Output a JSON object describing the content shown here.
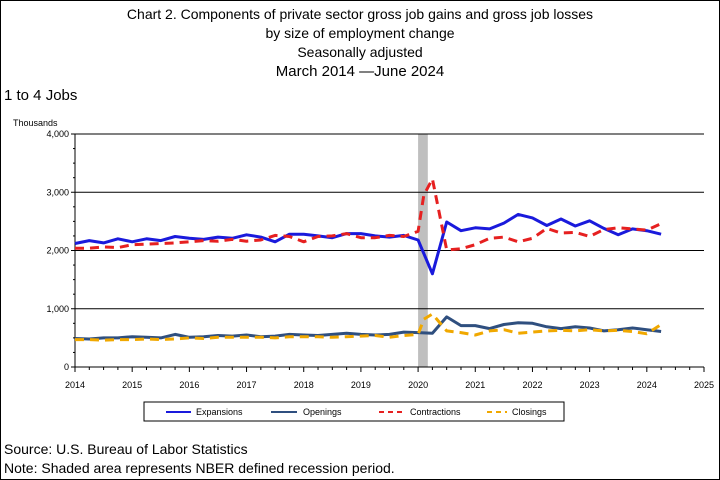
{
  "header": {
    "title_line1": "Chart 2. Components of private sector gross job gains and gross job losses",
    "title_line2": "by size of employment change",
    "title_line3": "Seasonally adjusted",
    "title_line4": "March 2014 —June 2024"
  },
  "subtitle": "1 to 4 Jobs",
  "footer": {
    "source": "Source: U.S. Bureau of Labor Statistics",
    "note": "Note: Shaded area represents NBER defined recession period."
  },
  "chart_data": {
    "type": "line",
    "ylabel": "Thousands",
    "xlabel": "",
    "xlim": [
      2014,
      2025
    ],
    "ylim": [
      0,
      4000
    ],
    "yticks": [
      0,
      1000,
      2000,
      3000,
      4000
    ],
    "ytick_labels": [
      "0",
      "1,000",
      "2,000",
      "3,000",
      "4,000"
    ],
    "xticks": [
      2014,
      2015,
      2016,
      2017,
      2018,
      2019,
      2020,
      2021,
      2022,
      2023,
      2024,
      2025
    ],
    "xtick_labels": [
      "2014",
      "2015",
      "2016",
      "2017",
      "2018",
      "2019",
      "2020",
      "2021",
      "2022",
      "2023",
      "2024",
      "2025"
    ],
    "grid": "horizontal",
    "recession": {
      "start": 2020.0,
      "end": 2020.17
    },
    "legend_position": "bottom",
    "colors": {
      "expansions": "#1a1adc",
      "openings": "#2f4f7f",
      "contractions": "#e62020",
      "closings": "#f0a800",
      "recession": "#bfbfbf"
    },
    "series": [
      {
        "name": "Expansions",
        "key": "expansions",
        "style": "solid",
        "x": [
          2014.0,
          2014.25,
          2014.5,
          2014.75,
          2015.0,
          2015.25,
          2015.5,
          2015.75,
          2016.0,
          2016.25,
          2016.5,
          2016.75,
          2017.0,
          2017.25,
          2017.5,
          2017.75,
          2018.0,
          2018.25,
          2018.5,
          2018.75,
          2019.0,
          2019.25,
          2019.5,
          2019.75,
          2020.0,
          2020.25,
          2020.5,
          2020.75,
          2021.0,
          2021.25,
          2021.5,
          2021.75,
          2022.0,
          2022.25,
          2022.5,
          2022.75,
          2023.0,
          2023.25,
          2023.5,
          2023.75,
          2024.0,
          2024.25
        ],
        "y": [
          2120,
          2170,
          2130,
          2200,
          2150,
          2200,
          2170,
          2240,
          2210,
          2190,
          2230,
          2210,
          2270,
          2230,
          2150,
          2280,
          2280,
          2250,
          2220,
          2290,
          2290,
          2250,
          2230,
          2260,
          2180,
          1600,
          2490,
          2340,
          2390,
          2370,
          2470,
          2620,
          2560,
          2430,
          2540,
          2420,
          2510,
          2380,
          2270,
          2370,
          2340,
          2280
        ]
      },
      {
        "name": "Openings",
        "key": "openings",
        "style": "solid",
        "x": [
          2014.0,
          2014.25,
          2014.5,
          2014.75,
          2015.0,
          2015.25,
          2015.5,
          2015.75,
          2016.0,
          2016.25,
          2016.5,
          2016.75,
          2017.0,
          2017.25,
          2017.5,
          2017.75,
          2018.0,
          2018.25,
          2018.5,
          2018.75,
          2019.0,
          2019.25,
          2019.5,
          2019.75,
          2020.0,
          2020.25,
          2020.5,
          2020.75,
          2021.0,
          2021.25,
          2021.5,
          2021.75,
          2022.0,
          2022.25,
          2022.5,
          2022.75,
          2023.0,
          2023.25,
          2023.5,
          2023.75,
          2024.0,
          2024.25
        ],
        "y": [
          490,
          480,
          500,
          500,
          520,
          510,
          500,
          560,
          510,
          520,
          540,
          530,
          550,
          520,
          530,
          560,
          550,
          540,
          560,
          580,
          560,
          550,
          560,
          600,
          590,
          580,
          860,
          710,
          710,
          660,
          730,
          760,
          750,
          690,
          660,
          690,
          670,
          620,
          640,
          670,
          640,
          610
        ]
      },
      {
        "name": "Contractions",
        "key": "contractions",
        "style": "dashed",
        "x": [
          2014.0,
          2014.25,
          2014.5,
          2014.75,
          2015.0,
          2015.25,
          2015.5,
          2015.75,
          2016.0,
          2016.25,
          2016.5,
          2016.75,
          2017.0,
          2017.25,
          2017.5,
          2017.75,
          2018.0,
          2018.25,
          2018.5,
          2018.75,
          2019.0,
          2019.25,
          2019.5,
          2019.75,
          2020.0,
          2020.1,
          2020.25,
          2020.5,
          2020.75,
          2021.0,
          2021.25,
          2021.5,
          2021.75,
          2022.0,
          2022.25,
          2022.5,
          2022.75,
          2023.0,
          2023.25,
          2023.5,
          2023.75,
          2024.0,
          2024.25
        ],
        "y": [
          2040,
          2040,
          2060,
          2050,
          2100,
          2110,
          2120,
          2130,
          2150,
          2170,
          2160,
          2190,
          2160,
          2180,
          2260,
          2240,
          2150,
          2240,
          2250,
          2290,
          2220,
          2220,
          2260,
          2240,
          2330,
          2950,
          3230,
          2010,
          2030,
          2100,
          2210,
          2230,
          2150,
          2210,
          2380,
          2300,
          2310,
          2240,
          2360,
          2390,
          2370,
          2350,
          2460
        ]
      },
      {
        "name": "Closings",
        "key": "closings",
        "style": "dashed",
        "x": [
          2014.0,
          2014.25,
          2014.5,
          2014.75,
          2015.0,
          2015.25,
          2015.5,
          2015.75,
          2016.0,
          2016.25,
          2016.5,
          2016.75,
          2017.0,
          2017.25,
          2017.5,
          2017.75,
          2018.0,
          2018.25,
          2018.5,
          2018.75,
          2019.0,
          2019.25,
          2019.5,
          2019.75,
          2020.0,
          2020.1,
          2020.25,
          2020.5,
          2020.75,
          2021.0,
          2021.25,
          2021.5,
          2021.75,
          2022.0,
          2022.25,
          2022.5,
          2022.75,
          2023.0,
          2023.25,
          2023.5,
          2023.75,
          2024.0,
          2024.25
        ],
        "y": [
          470,
          470,
          460,
          470,
          470,
          480,
          470,
          480,
          500,
          490,
          510,
          510,
          510,
          510,
          500,
          520,
          520,
          520,
          510,
          520,
          530,
          540,
          510,
          540,
          560,
          820,
          910,
          620,
          590,
          550,
          620,
          640,
          580,
          600,
          620,
          630,
          620,
          640,
          620,
          630,
          610,
          570,
          730
        ]
      }
    ]
  }
}
